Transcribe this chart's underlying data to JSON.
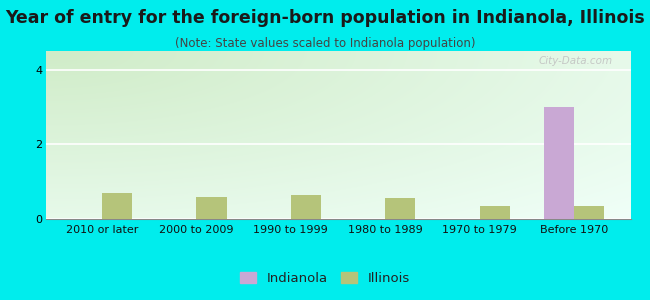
{
  "title": "Year of entry for the foreign-born population in Indianola, Illinois",
  "subtitle": "(Note: State values scaled to Indianola population)",
  "categories": [
    "2010 or later",
    "2000 to 2009",
    "1990 to 1999",
    "1980 to 1989",
    "1970 to 1979",
    "Before 1970"
  ],
  "indianola_values": [
    0,
    0,
    0,
    0,
    0,
    3.0
  ],
  "illinois_values": [
    0.7,
    0.6,
    0.65,
    0.55,
    0.35,
    0.35
  ],
  "indianola_color": "#c9a8d4",
  "illinois_color": "#b5c47a",
  "background_outer": "#00eded",
  "grad_color_topleft": "#d0ecc8",
  "grad_color_bottomright": "#f0fff8",
  "ylim": [
    0,
    4.5
  ],
  "yticks": [
    0,
    2,
    4
  ],
  "bar_width": 0.32,
  "title_fontsize": 12.5,
  "subtitle_fontsize": 8.5,
  "tick_fontsize": 8,
  "legend_fontsize": 9.5,
  "watermark": "City-Data.com"
}
